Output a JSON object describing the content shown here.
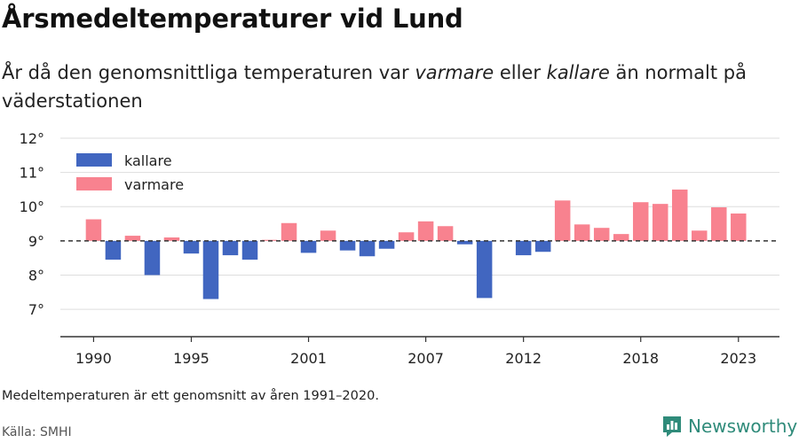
{
  "title": "Årsmedeltemperaturer vid Lund",
  "subtitle": {
    "part1": "År då den genomsnittliga temperaturen var ",
    "warm": "varmare",
    "part2": " eller ",
    "cold": "kallare",
    "part3": " än normalt på väderstationen"
  },
  "note": "Medeltemperaturen är ett genomsnitt av åren 1991–2020.",
  "source": "Källa: SMHI",
  "brand": {
    "name": "Newsworthy",
    "icon": "bar-chart-logo-icon",
    "color": "#2f8b7a"
  },
  "chart_data": {
    "type": "bar",
    "baseline": 9.0,
    "ylim": [
      6.2,
      12.0
    ],
    "xlim": [
      1988.3,
      2025.1
    ],
    "yticks": [
      7,
      8,
      9,
      10,
      11,
      12
    ],
    "ytick_labels": [
      "7°",
      "8°",
      "9°",
      "10°",
      "11°",
      "12°"
    ],
    "xticks": [
      1990,
      1995,
      2001,
      2007,
      2012,
      2018,
      2023
    ],
    "xtick_labels": [
      "1990",
      "1995",
      "2001",
      "2007",
      "2012",
      "2018",
      "2023"
    ],
    "grid": true,
    "legend": {
      "position": "top-left",
      "entries": [
        {
          "label": "kallare",
          "color": "#4166c0"
        },
        {
          "label": "varmare",
          "color": "#f8828f"
        }
      ]
    },
    "colors": {
      "kallare": "#4166c0",
      "varmare": "#f8828f"
    },
    "years": [
      1990,
      1991,
      1992,
      1993,
      1994,
      1995,
      1996,
      1997,
      1998,
      1999,
      2000,
      2001,
      2002,
      2003,
      2004,
      2005,
      2006,
      2007,
      2008,
      2009,
      2010,
      2011,
      2012,
      2013,
      2014,
      2015,
      2016,
      2017,
      2018,
      2019,
      2020,
      2021,
      2022,
      2023
    ],
    "values": [
      9.63,
      8.45,
      9.15,
      8.0,
      9.1,
      8.63,
      7.3,
      8.58,
      8.45,
      9.03,
      9.52,
      8.65,
      9.3,
      8.72,
      8.55,
      8.77,
      9.25,
      9.57,
      9.43,
      8.9,
      7.33,
      null,
      8.58,
      8.68,
      10.18,
      9.48,
      9.38,
      9.2,
      10.13,
      10.08,
      10.5,
      9.3,
      9.98,
      9.8
    ]
  }
}
